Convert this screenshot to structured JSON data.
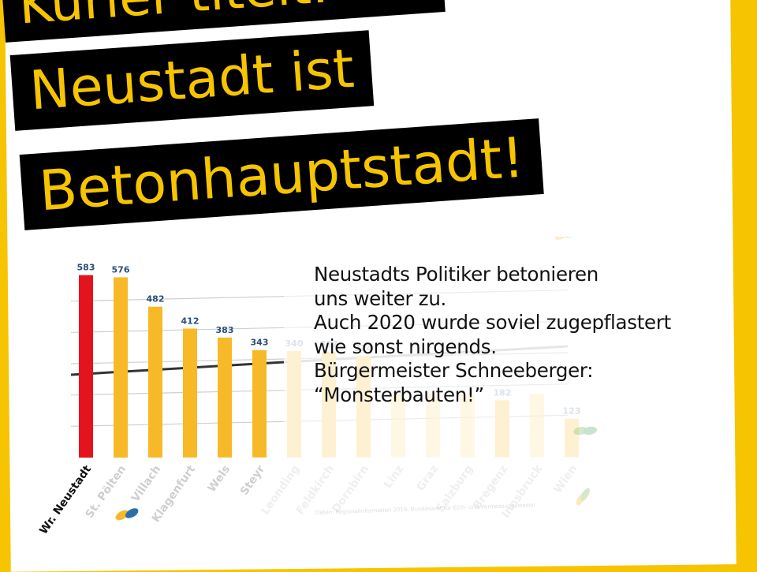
{
  "headline": {
    "line1": "Kurier titelt: Wr.",
    "line2": "Neustadt ist",
    "line3": "Betonhauptstadt!"
  },
  "body_text": {
    "lines": [
      "Neustadts Politiker betonieren",
      "uns weiter zu.",
      "Auch 2020 wurde soviel zugepflastert",
      "wie sonst nirgends.",
      "Bürgermeister Schneeberger:",
      "“Monsterbauten!”"
    ]
  },
  "colors": {
    "brand_yellow": "#f6c400",
    "highlight_red": "#e3141e",
    "bar_yellow": "#f7b928",
    "faded_bar": "#fdf1d2",
    "label_blue": "#2a4f7a"
  },
  "chart_data": {
    "type": "bar",
    "categories": [
      "Wr. Neustadt",
      "St. Pölten",
      "Villach",
      "Klagenfurt",
      "Wels",
      "Steyr",
      "Leonding",
      "Feldkirch",
      "Dornbirn",
      "Linz",
      "Graz",
      "Salzburg",
      "Bregenz",
      "Innsbruck",
      "Wien"
    ],
    "values": [
      583,
      576,
      482,
      412,
      383,
      343,
      340,
      337,
      324,
      null,
      null,
      null,
      182,
      null,
      123
    ],
    "value_labels": [
      "583",
      "576",
      "482",
      "412",
      "383",
      "343",
      "340",
      "337",
      "324",
      "",
      "",
      "",
      "182",
      "",
      "123"
    ],
    "highlighted_index": 0,
    "visible_count": 6,
    "ylim": [
      0,
      600
    ],
    "grid": true,
    "source": "Daten: Regionalinformation 2019, Bundesamt für Eich- und Vermessungswesen"
  }
}
